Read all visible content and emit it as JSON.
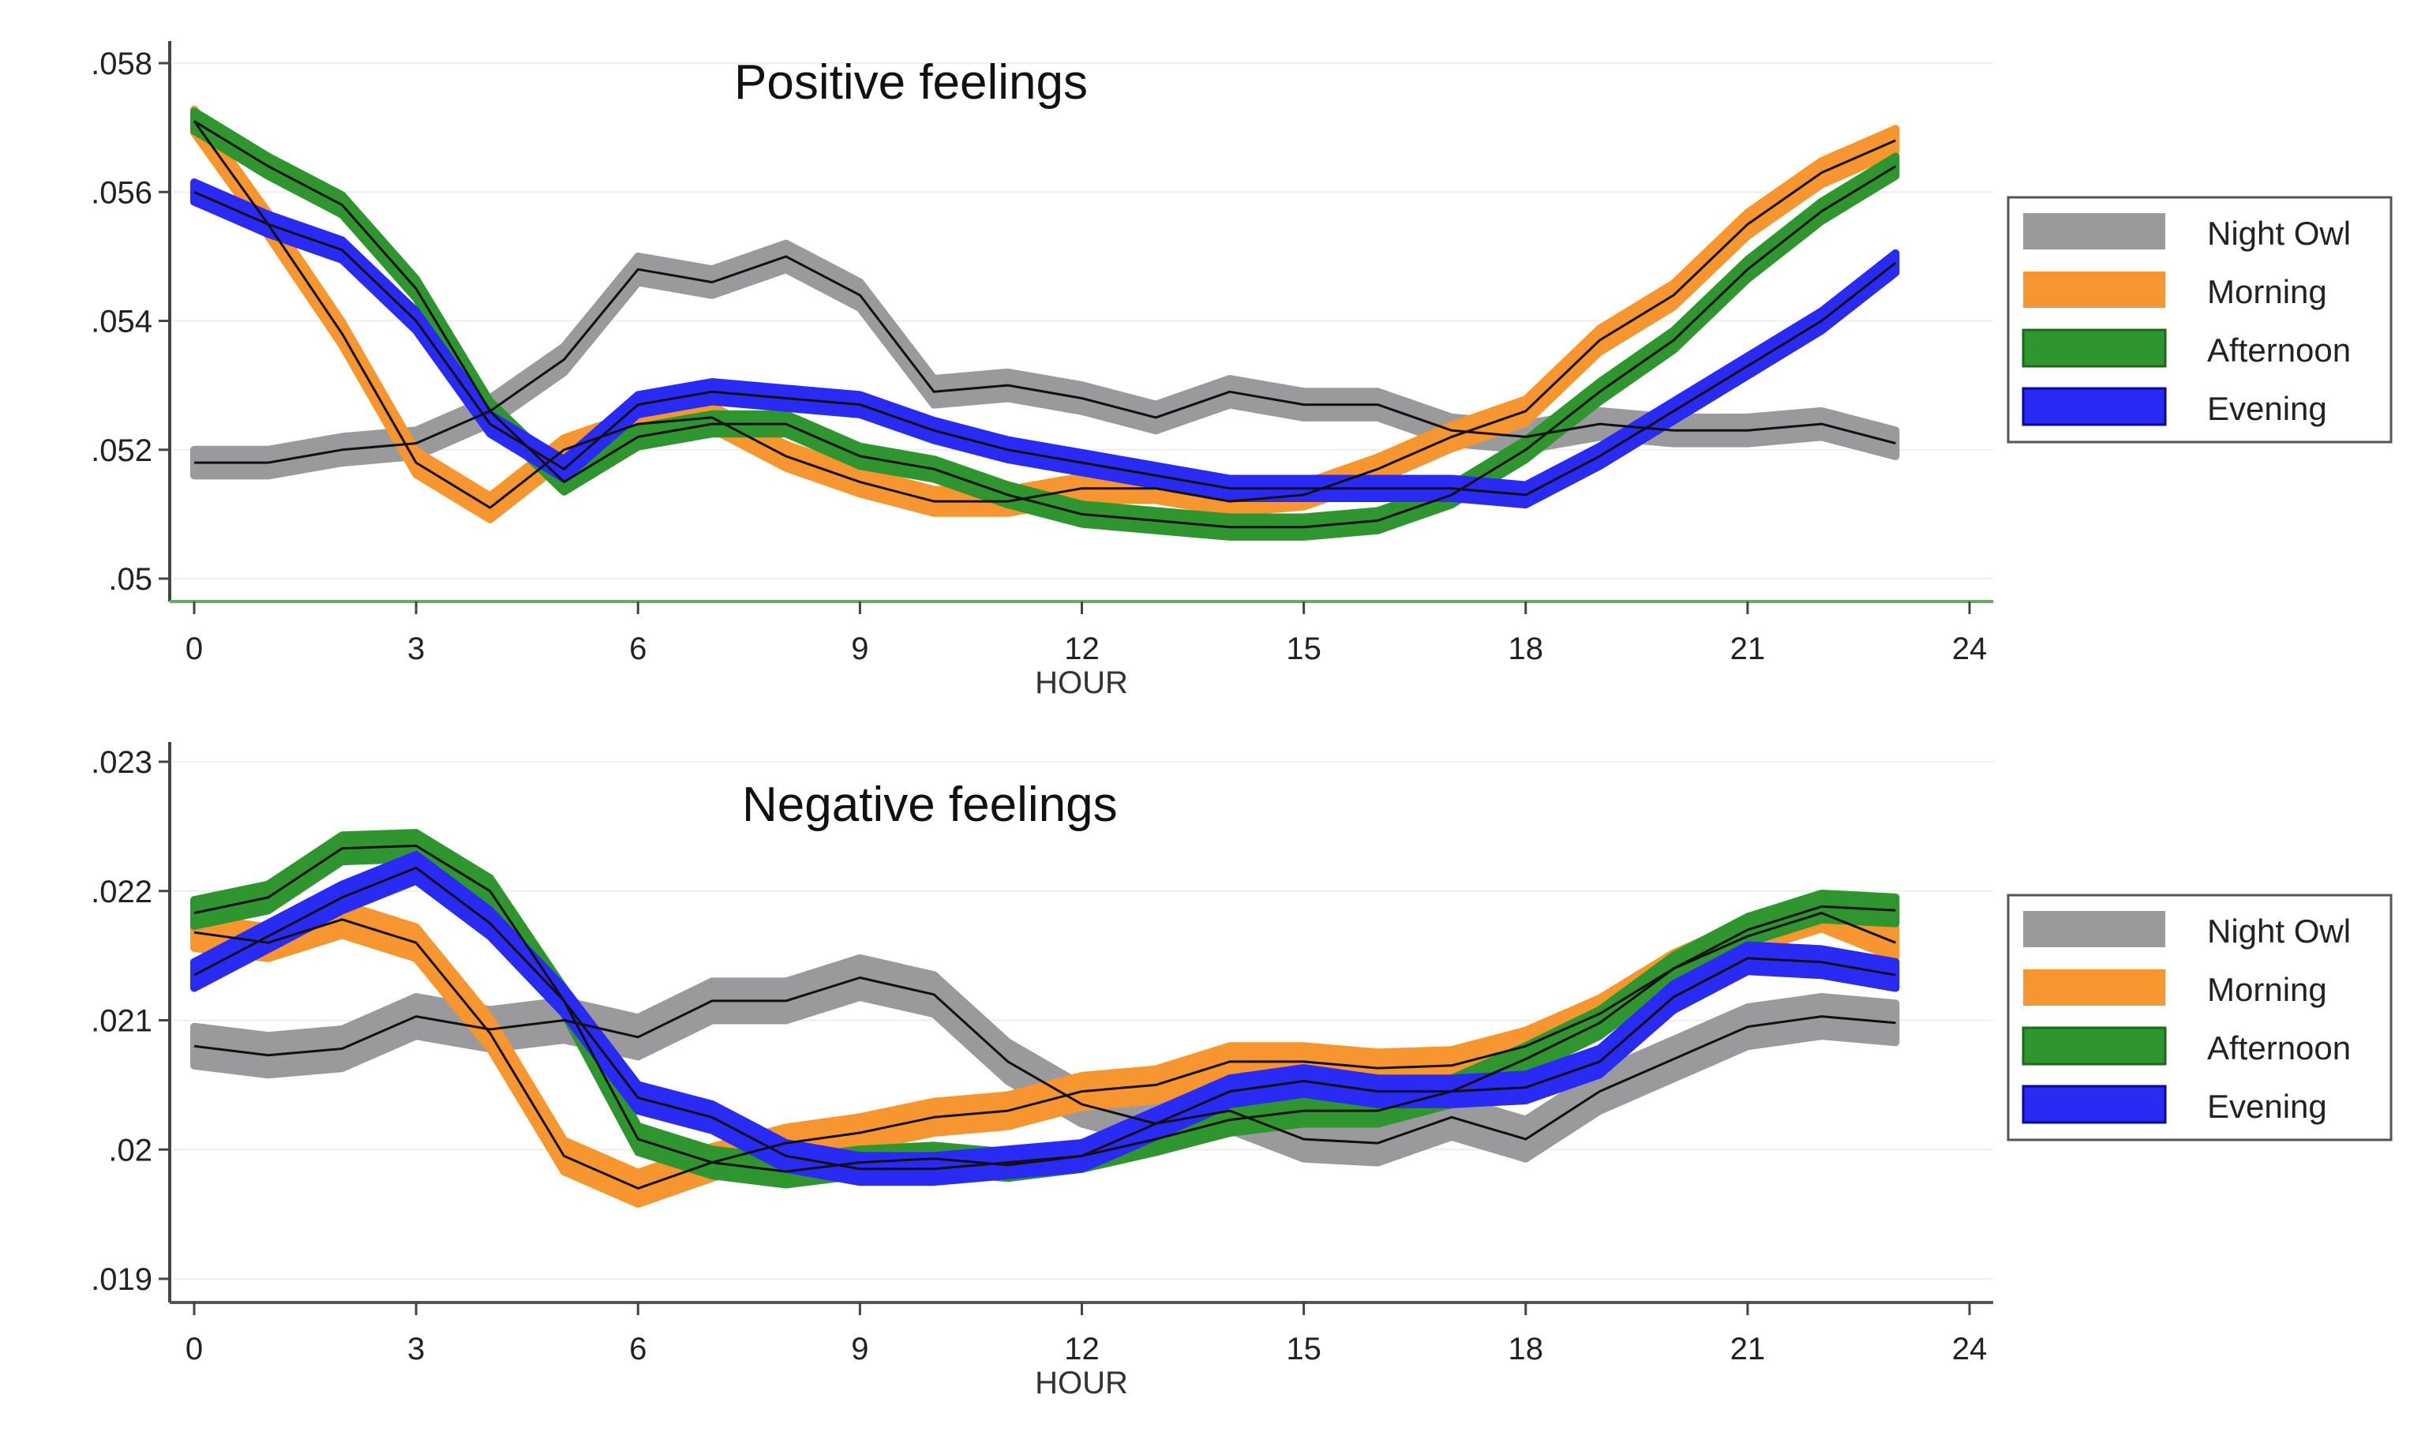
{
  "chart_data": [
    {
      "type": "line",
      "title": "Positive feelings",
      "xlabel": "HOUR",
      "ylabel": "",
      "xlim": [
        0,
        24
      ],
      "ylim": [
        0.0497,
        0.0582
      ],
      "xticks": [
        0,
        3,
        6,
        9,
        12,
        15,
        18,
        21,
        24
      ],
      "xtick_labels": [
        "0",
        "3",
        "6",
        "9",
        "12",
        "15",
        "18",
        "21",
        "24"
      ],
      "yticks": [
        0.05,
        0.052,
        0.054,
        0.056,
        0.058
      ],
      "ytick_labels": [
        ".05",
        ".052",
        ".054",
        ".056",
        ".058"
      ],
      "grid": true,
      "legend_position": "right",
      "x": [
        0,
        1,
        2,
        3,
        4,
        5,
        6,
        7,
        8,
        9,
        10,
        11,
        12,
        13,
        14,
        15,
        16,
        17,
        18,
        19,
        20,
        21,
        22,
        23
      ],
      "series": [
        {
          "name": "Night Owl",
          "color": "#9a9a9c",
          "band_halfwidth": 0.0002,
          "values": [
            0.0518,
            0.0518,
            0.052,
            0.0521,
            0.0526,
            0.0534,
            0.0548,
            0.0546,
            0.055,
            0.0544,
            0.0529,
            0.053,
            0.0528,
            0.0525,
            0.0529,
            0.0527,
            0.0527,
            0.0523,
            0.0522,
            0.0524,
            0.0523,
            0.0523,
            0.0524,
            0.0521
          ]
        },
        {
          "name": "Morning",
          "color": "#f7962f",
          "band_halfwidth": 0.00018,
          "values": [
            0.0571,
            0.0555,
            0.0538,
            0.0518,
            0.0511,
            0.052,
            0.0524,
            0.0525,
            0.0519,
            0.0515,
            0.0512,
            0.0512,
            0.0514,
            0.0514,
            0.0512,
            0.0513,
            0.0517,
            0.0522,
            0.0526,
            0.0537,
            0.0544,
            0.0555,
            0.0563,
            0.0568
          ]
        },
        {
          "name": "Afternoon",
          "color": "#2f962f",
          "band_halfwidth": 0.00015,
          "values": [
            0.0571,
            0.0564,
            0.0558,
            0.0545,
            0.0526,
            0.0515,
            0.0522,
            0.0524,
            0.0524,
            0.0519,
            0.0517,
            0.0513,
            0.051,
            0.0509,
            0.0508,
            0.0508,
            0.0509,
            0.0513,
            0.052,
            0.0529,
            0.0537,
            0.0548,
            0.0557,
            0.0564
          ]
        },
        {
          "name": "Evening",
          "color": "#2a2af5",
          "band_halfwidth": 0.00015,
          "values": [
            0.056,
            0.0555,
            0.0551,
            0.054,
            0.0524,
            0.0517,
            0.0527,
            0.0529,
            0.0528,
            0.0527,
            0.0523,
            0.052,
            0.0518,
            0.0516,
            0.0514,
            0.0514,
            0.0514,
            0.0514,
            0.0513,
            0.0519,
            0.0526,
            0.0533,
            0.054,
            0.0549
          ]
        }
      ]
    },
    {
      "type": "line",
      "title": "Negative feelings",
      "xlabel": "HOUR",
      "ylabel": "",
      "xlim": [
        0,
        24
      ],
      "ylim": [
        0.01885,
        0.02315
      ],
      "xticks": [
        0,
        3,
        6,
        9,
        12,
        15,
        18,
        21,
        24
      ],
      "xtick_labels": [
        "0",
        "3",
        "6",
        "9",
        "12",
        "15",
        "18",
        "21",
        "24"
      ],
      "yticks": [
        0.019,
        0.02,
        0.021,
        0.022,
        0.023
      ],
      "ytick_labels": [
        ".019",
        ".02",
        ".021",
        ".022",
        ".023"
      ],
      "grid": true,
      "legend_position": "right",
      "x": [
        0,
        1,
        2,
        3,
        4,
        5,
        6,
        7,
        8,
        9,
        10,
        11,
        12,
        13,
        14,
        15,
        16,
        17,
        18,
        19,
        20,
        21,
        22,
        23
      ],
      "series": [
        {
          "name": "Night Owl",
          "color": "#9a9a9c",
          "band_halfwidth": 0.00015,
          "values": [
            0.0208,
            0.02073,
            0.02078,
            0.02103,
            0.02093,
            0.021,
            0.02087,
            0.02115,
            0.02115,
            0.02133,
            0.0212,
            0.02068,
            0.02035,
            0.0202,
            0.0203,
            0.02008,
            0.02005,
            0.02025,
            0.02008,
            0.02045,
            0.0207,
            0.02095,
            0.02103,
            0.02098
          ]
        },
        {
          "name": "Morning",
          "color": "#f7962f",
          "band_halfwidth": 0.00012,
          "values": [
            0.02168,
            0.0216,
            0.02178,
            0.0216,
            0.0209,
            0.01995,
            0.0197,
            0.0199,
            0.02005,
            0.02013,
            0.02025,
            0.0203,
            0.02045,
            0.0205,
            0.02068,
            0.02068,
            0.02063,
            0.02065,
            0.0208,
            0.02105,
            0.0214,
            0.02165,
            0.02183,
            0.0216
          ]
        },
        {
          "name": "Afternoon",
          "color": "#2f962f",
          "band_halfwidth": 0.0001,
          "values": [
            0.02183,
            0.02195,
            0.02233,
            0.02235,
            0.022,
            0.02115,
            0.02008,
            0.0199,
            0.01983,
            0.0199,
            0.01993,
            0.01988,
            0.01995,
            0.02008,
            0.02023,
            0.0203,
            0.0203,
            0.02045,
            0.0207,
            0.02098,
            0.0214,
            0.0217,
            0.02188,
            0.02185
          ]
        },
        {
          "name": "Evening",
          "color": "#2a2af5",
          "band_halfwidth": 0.0001,
          "values": [
            0.02135,
            0.02165,
            0.02195,
            0.02218,
            0.02175,
            0.02115,
            0.0204,
            0.02025,
            0.01995,
            0.01985,
            0.01985,
            0.0199,
            0.01995,
            0.0202,
            0.02045,
            0.02053,
            0.02045,
            0.02045,
            0.02048,
            0.02068,
            0.02118,
            0.02148,
            0.02145,
            0.02135
          ]
        }
      ]
    }
  ],
  "panels": [
    {
      "title": "Positive feelings",
      "xlabel": "HOUR",
      "legend": [
        {
          "label": "Night Owl",
          "color": "#9a9a9c"
        },
        {
          "label": "Morning",
          "color": "#f7962f"
        },
        {
          "label": "Afternoon",
          "color": "#2f962f"
        },
        {
          "label": "Evening",
          "color": "#2a2af5"
        }
      ]
    },
    {
      "title": "Negative feelings",
      "xlabel": "HOUR",
      "legend": [
        {
          "label": "Night Owl",
          "color": "#9a9a9c"
        },
        {
          "label": "Morning",
          "color": "#f7962f"
        },
        {
          "label": "Afternoon",
          "color": "#2f962f"
        },
        {
          "label": "Evening",
          "color": "#2a2af5"
        }
      ]
    }
  ]
}
